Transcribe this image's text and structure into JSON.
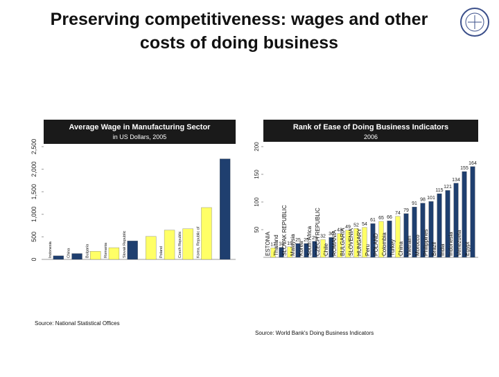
{
  "slide": {
    "title_lines": [
      "Preserving competitiveness: wages and other",
      "costs of doing business"
    ]
  },
  "chart_data": [
    {
      "type": "bar",
      "title": "Average Wage in Manufacturing Sector",
      "subtitle": "in US Dollars, 2005",
      "categories": [
        "Indonesia",
        "China",
        "Bulgaria",
        "Romania",
        "Slovak Republic",
        null,
        "Poland",
        "Czech Republic",
        "Korea, Republic of",
        null
      ],
      "values": [
        80,
        130,
        180,
        260,
        410,
        510,
        650,
        680,
        1150,
        2230
      ],
      "colors": [
        "#1f3f6f",
        "#1f3f6f",
        "#ffff66",
        "#ffff66",
        "#1f3f6f",
        "#ffff66",
        "#ffff66",
        "#ffff66",
        "#ffff66",
        "#1f3f6f"
      ],
      "ylim": [
        0,
        2500
      ],
      "yticks": [
        0,
        500,
        {
          "value": 1000,
          "label": "1,000"
        },
        {
          "value": 1500,
          "label": "1,500"
        },
        {
          "value": 2000,
          "label": "2,000"
        },
        {
          "value": 2500,
          "label": "2,500"
        }
      ],
      "source": "Source: National Statistical Offices"
    },
    {
      "type": "bar",
      "title": "Rank of Ease of Doing Business Indicators",
      "subtitle": "2006",
      "categories": [
        "ESTONIA",
        "Thailand",
        "SLOVAK REPUBLIC",
        "Malaysia",
        "Korea",
        "South Africa",
        "CZECH REPUBLIC",
        "Chile",
        "ROMANIA",
        "BULGARIA",
        "SLOVENIA",
        "HUNGARY",
        "Peru",
        "POLAND",
        "Colombia",
        "Turkey",
        "China",
        "Vietnam",
        "Morocco",
        "Philippines",
        "Brazil",
        "India",
        "Indonesia",
        "Venezuela",
        "Egypt"
      ],
      "values": [
        17,
        18,
        19,
        25,
        25,
        29,
        32,
        36,
        43,
        49,
        52,
        54,
        61,
        65,
        66,
        74,
        79,
        91,
        98,
        101,
        115,
        121,
        134,
        155,
        164
      ],
      "colors": [
        "#ffff66",
        "#1f3f6f",
        "#ffff66",
        "#1f3f6f",
        "#1f3f6f",
        "#1f3f6f",
        "#ffff66",
        "#1f3f6f",
        "#ffff66",
        "#ffff66",
        "#ffff66",
        "#ffff66",
        "#1f3f6f",
        "#ffff66",
        "#1f3f6f",
        "#ffff66",
        "#1f3f6f",
        "#1f3f6f",
        "#1f3f6f",
        "#1f3f6f",
        "#1f3f6f",
        "#1f3f6f",
        "#1f3f6f",
        "#1f3f6f",
        "#1f3f6f"
      ],
      "ylim": [
        0,
        200
      ],
      "yticks": [
        50,
        100,
        150,
        200
      ],
      "source": "Source: World Bank's Doing Business Indicators"
    }
  ]
}
